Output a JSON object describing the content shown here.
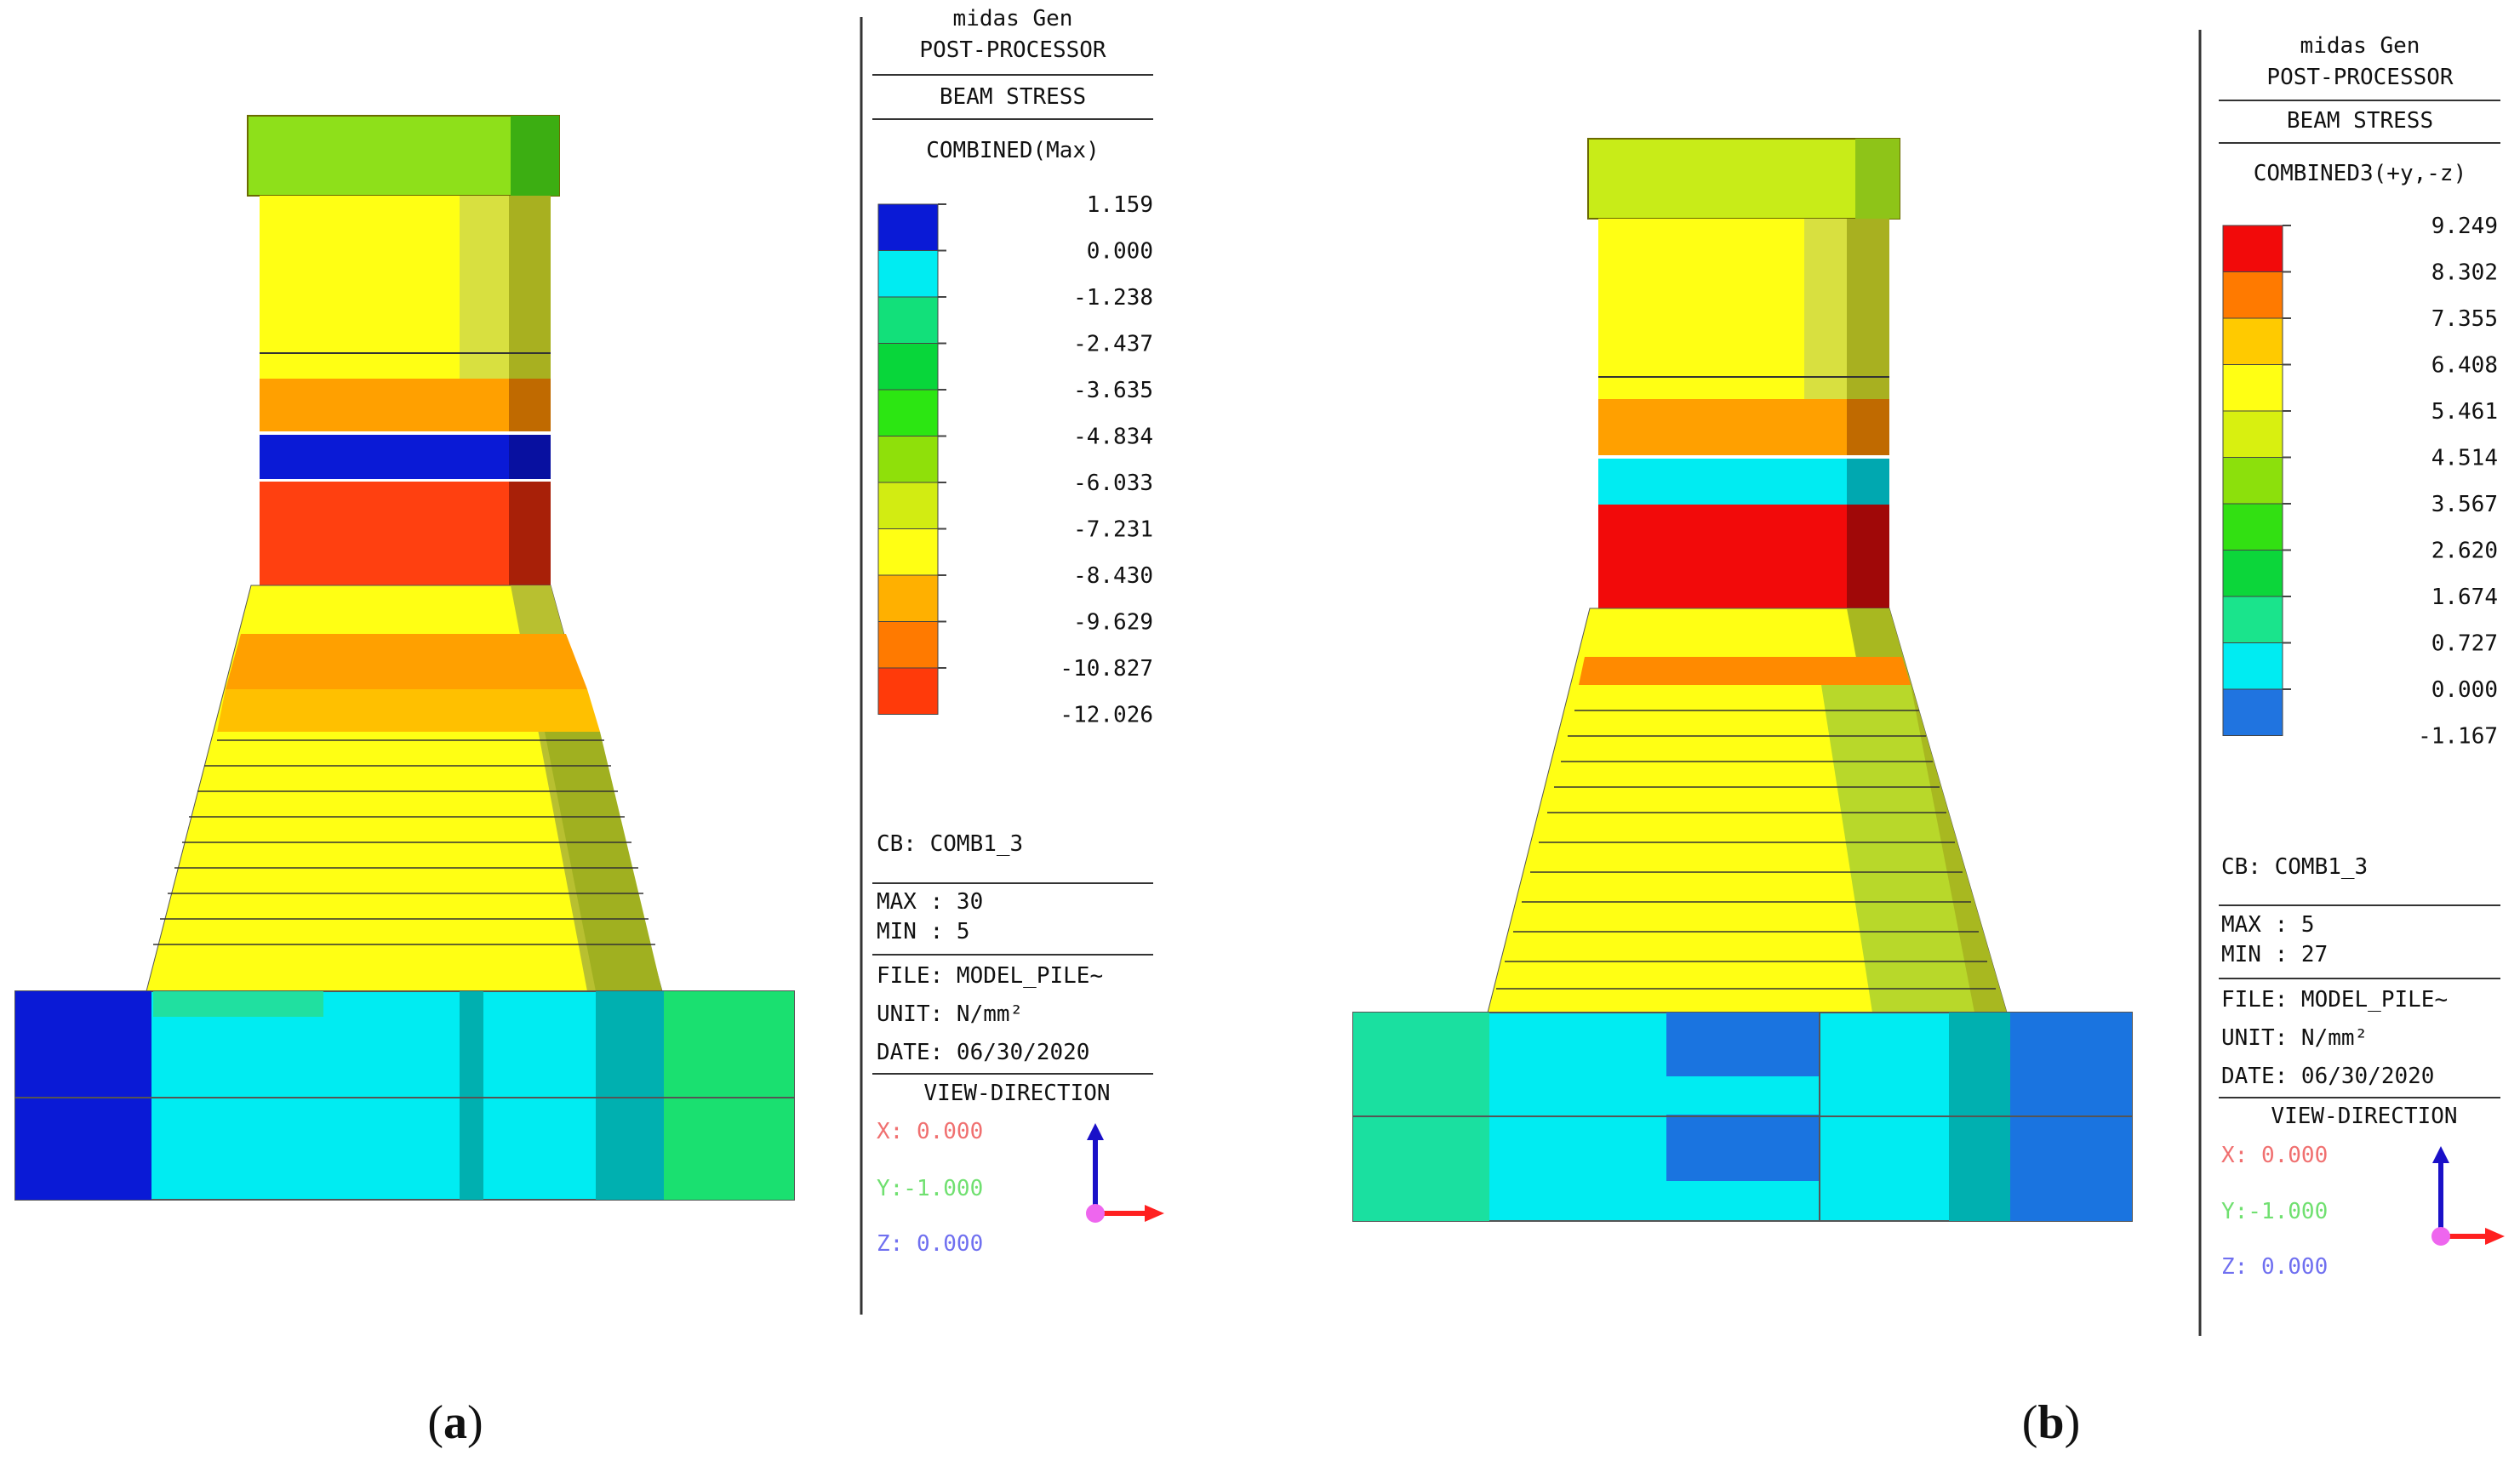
{
  "panels": [
    {
      "caption": "a",
      "header": {
        "app": "midas Gen",
        "module": "POST-PROCESSOR",
        "result": "BEAM STRESS",
        "component": "COMBINED(Max)"
      },
      "legend": {
        "labels": [
          "1.159",
          "0.000",
          "-1.238",
          "-2.437",
          "-3.635",
          "-4.834",
          "-6.033",
          "-7.231",
          "-8.430",
          "-9.629",
          "-10.827",
          "-12.026"
        ],
        "colors": [
          "#0a1ad6",
          "#00ecf2",
          "#12e07a",
          "#08d63a",
          "#2ce612",
          "#8fe00a",
          "#d2ec12",
          "#ffff14",
          "#ffb000",
          "#ff7a00",
          "#ff3a0a"
        ]
      },
      "info": {
        "cb": "CB: COMB1_3",
        "max": "MAX : 30",
        "min": "MIN : 5",
        "file": "FILE: MODEL_PILE~",
        "unit": "UNIT: N/mm²",
        "date": "DATE: 06/30/2020"
      },
      "view": {
        "title": "VIEW-DIRECTION",
        "x": "X: 0.000",
        "y": "Y:-1.000",
        "z": "Z: 0.000"
      }
    },
    {
      "caption": "b",
      "header": {
        "app": "midas Gen",
        "module": "POST-PROCESSOR",
        "result": "BEAM STRESS",
        "component": "COMBINED3(+y,-z)"
      },
      "legend": {
        "labels": [
          "9.249",
          "8.302",
          "7.355",
          "6.408",
          "5.461",
          "4.514",
          "3.567",
          "2.620",
          "1.674",
          "0.727",
          "0.000",
          "-1.167"
        ],
        "colors": [
          "#f20a0a",
          "#ff7a00",
          "#ffca00",
          "#ffff14",
          "#d8f010",
          "#8ce00c",
          "#32e012",
          "#0cd63a",
          "#1ae48c",
          "#00ecf2",
          "#2074e0"
        ]
      },
      "info": {
        "cb": "CB: COMB1_3",
        "max": "MAX : 5",
        "min": "MIN : 27",
        "file": "FILE: MODEL_PILE~",
        "unit": "UNIT: N/mm²",
        "date": "DATE: 06/30/2020"
      },
      "view": {
        "title": "VIEW-DIRECTION",
        "x": "X: 0.000",
        "y": "Y:-1.000",
        "z": "Z: 0.000"
      }
    }
  ],
  "colors": {
    "axis_x": "#ff2020",
    "axis_y": "#1a10c8",
    "origin": "#ee66ee",
    "view_x_text": "#f07070",
    "view_y_text": "#70e070",
    "view_z_text": "#7070f0",
    "line": "#333333"
  }
}
